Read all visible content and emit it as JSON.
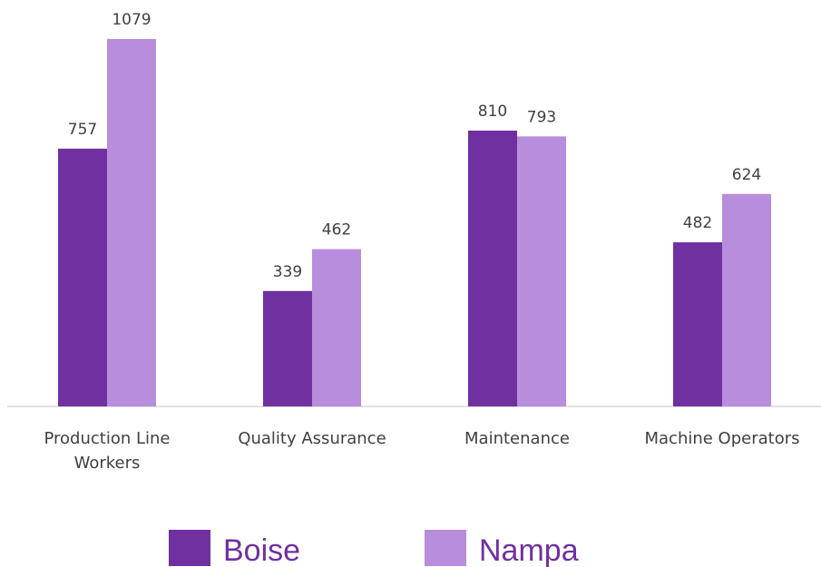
{
  "chart_data": {
    "type": "bar",
    "categories": [
      "Production Line Workers",
      "Quality Assurance",
      "Maintenance",
      "Machine Operators"
    ],
    "series": [
      {
        "name": "Boise",
        "color": "#7030a0",
        "values": [
          757,
          339,
          810,
          482
        ]
      },
      {
        "name": "Nampa",
        "color": "#b88ddc",
        "values": [
          1079,
          462,
          793,
          624
        ]
      }
    ],
    "legend": "bottom"
  }
}
